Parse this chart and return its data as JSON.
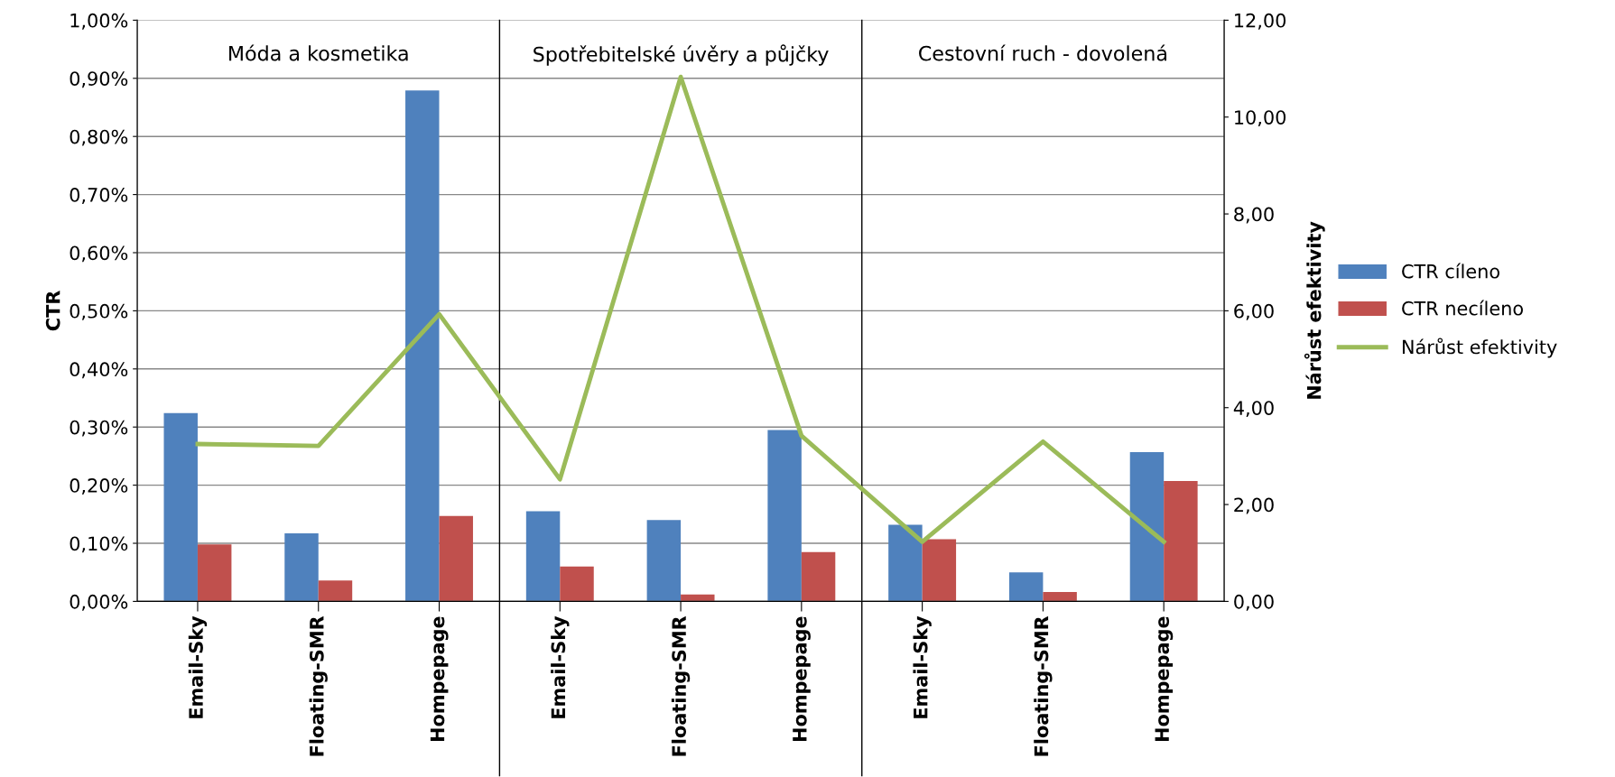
{
  "chart_data": {
    "type": "bar",
    "categories": [
      "Email-Sky",
      "Floating-SMR",
      "Hompepage",
      "Email-Sky",
      "Floating-SMR",
      "Hompepage",
      "Email-Sky",
      "Floating-SMR",
      "Hompepage"
    ],
    "series": [
      {
        "name": "CTR cíleno",
        "color": "#4f81bd",
        "values": [
          0.324,
          0.117,
          0.879,
          0.155,
          0.14,
          0.295,
          0.132,
          0.05,
          0.257
        ]
      },
      {
        "name": "CTR necíleno",
        "color": "#c0504d",
        "values": [
          0.098,
          0.036,
          0.147,
          0.06,
          0.012,
          0.085,
          0.107,
          0.016,
          0.207
        ]
      },
      {
        "name": "Nárůst efektivity",
        "type": "line",
        "axis": "y2",
        "color": "#9bbb59",
        "values": [
          3.25,
          3.21,
          5.93,
          2.52,
          10.83,
          3.42,
          1.23,
          3.3,
          1.23
        ]
      }
    ],
    "ylabel": "CTR",
    "y2label": "Nárůst efektivity",
    "ylim": [
      0,
      1.0
    ],
    "yticks": [
      {
        "value": 0,
        "label": "0,00%"
      },
      {
        "value": 0.1,
        "label": "0,10%"
      },
      {
        "value": 0.2,
        "label": "0,20%"
      },
      {
        "value": 0.3,
        "label": "0,30%"
      },
      {
        "value": 0.4,
        "label": "0,40%"
      },
      {
        "value": 0.5,
        "label": "0,50%"
      },
      {
        "value": 0.6,
        "label": "0,60%"
      },
      {
        "value": 0.7,
        "label": "0,70%"
      },
      {
        "value": 0.8,
        "label": "0,80%"
      },
      {
        "value": 0.9,
        "label": "0,90%"
      },
      {
        "value": 1.0,
        "label": "1,00%"
      }
    ],
    "y2lim": [
      0,
      12
    ],
    "y2ticks": [
      {
        "value": 0,
        "label": "0,00"
      },
      {
        "value": 2,
        "label": "2,00"
      },
      {
        "value": 4,
        "label": "4,00"
      },
      {
        "value": 6,
        "label": "6,00"
      },
      {
        "value": 8,
        "label": "8,00"
      },
      {
        "value": 10,
        "label": "10,00"
      },
      {
        "value": 12,
        "label": "12,00"
      }
    ],
    "annotations": [
      "Móda a kosmetika",
      "Spotřebitelské úvěry a půjčky",
      "Cestovní ruch - dovolená"
    ],
    "grid": "y",
    "legend": "right",
    "marker": "none",
    "line_style": "solid"
  }
}
